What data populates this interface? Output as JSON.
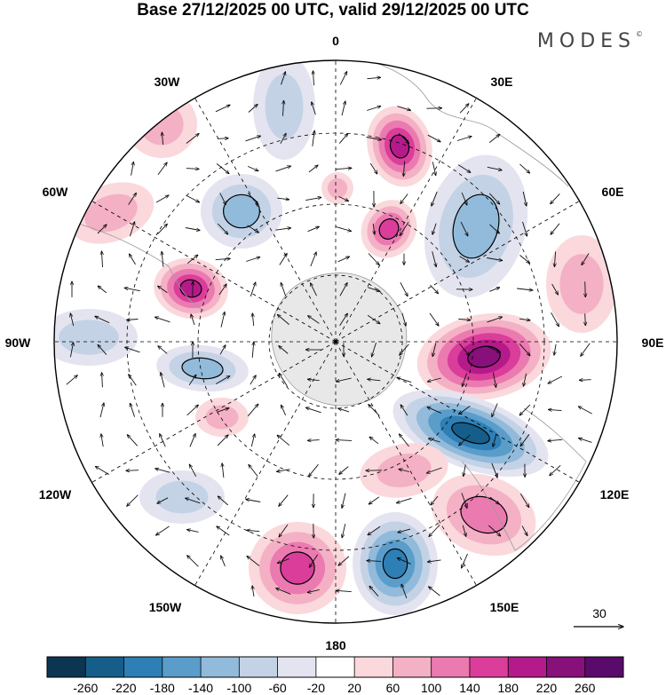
{
  "title": "Base 27/12/2025 00 UTC, valid 29/12/2025 00 UTC",
  "brand": "MODES",
  "brand_mark": "©",
  "map": {
    "projection": "south-polar-stereographic",
    "longitude_labels": [
      "0",
      "30E",
      "60E",
      "90E",
      "120E",
      "150E",
      "180",
      "150W",
      "120W",
      "90W",
      "60W",
      "30W"
    ],
    "vector_reference": {
      "label": "30"
    }
  },
  "colorbar": {
    "ticks": [
      "-260",
      "-220",
      "-180",
      "-140",
      "-100",
      "-60",
      "-20",
      "20",
      "60",
      "100",
      "140",
      "180",
      "220",
      "260"
    ],
    "colors": [
      "#0b3550",
      "#155e8a",
      "#2e7fb5",
      "#5a9dcb",
      "#92bada",
      "#c4d2e6",
      "#e4e4f0",
      "#ffffff",
      "#fad8dc",
      "#f4b0c4",
      "#eb7ab0",
      "#da3e9a",
      "#b51a8a",
      "#87107a",
      "#5a0a6a"
    ]
  },
  "anomaly_cells": [
    {
      "id": "cell-1",
      "value": 180
    },
    {
      "id": "cell-2",
      "value": 140
    },
    {
      "id": "cell-3",
      "value": -120
    },
    {
      "id": "cell-4",
      "value": -100
    },
    {
      "id": "cell-5",
      "value": 200
    },
    {
      "id": "cell-6",
      "value": -120
    },
    {
      "id": "cell-7",
      "value": 240
    },
    {
      "id": "cell-8",
      "value": -240
    },
    {
      "id": "cell-9",
      "value": -200
    },
    {
      "id": "cell-10",
      "value": 140
    },
    {
      "id": "cell-11",
      "value": 100
    },
    {
      "id": "cell-12",
      "value": 80
    },
    {
      "id": "cell-13",
      "value": 60
    },
    {
      "id": "cell-14",
      "value": -60
    },
    {
      "id": "cell-15",
      "value": 60
    },
    {
      "id": "cell-16",
      "value": -60
    },
    {
      "id": "cell-17",
      "value": 60
    },
    {
      "id": "cell-18",
      "value": 60
    },
    {
      "id": "cell-19",
      "value": -60
    },
    {
      "id": "cell-20",
      "value": 60
    }
  ]
}
